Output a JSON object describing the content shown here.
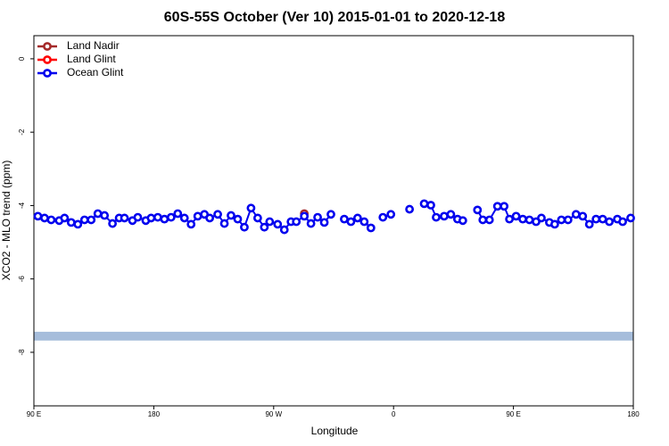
{
  "chart_data": {
    "type": "line",
    "title": "60S-55S October (Ver 10)   2015-01-01 to 2020-12-18",
    "x_label": "Longitude",
    "y_label": "XCO2 - MLO trend (ppm)",
    "xlim": [
      90,
      540
    ],
    "xticks": [
      {
        "value": 90,
        "label": "90 E"
      },
      {
        "value": 180,
        "label": "180"
      },
      {
        "value": 270,
        "label": "90 W"
      },
      {
        "value": 360,
        "label": "0"
      },
      {
        "value": 450,
        "label": "90 E"
      },
      {
        "value": 540,
        "label": "180"
      }
    ],
    "ylim": [
      -9.46,
      0.63
    ],
    "yticks": [
      0,
      -2,
      -4,
      -6,
      -8
    ],
    "legend": "top-left",
    "band": {
      "range": [
        -7.68,
        -7.44
      ],
      "color": "#a6bddb"
    },
    "series": [
      {
        "name": "Land Nadir",
        "color": "#a52a2a",
        "x": [
          293
        ],
        "values": [
          -4.22
        ]
      },
      {
        "name": "Land Glint",
        "color": "#ff0000",
        "x": [],
        "values": []
      },
      {
        "name": "Ocean Glint",
        "color": "#0000ee",
        "x": [
          93,
          98,
          103,
          109,
          113,
          118,
          123,
          128,
          133,
          138,
          143,
          149,
          154,
          158,
          164,
          168,
          174,
          178,
          183,
          188,
          193,
          198,
          203,
          208,
          213,
          218,
          222,
          228,
          233,
          238,
          243,
          248,
          253,
          258,
          263,
          267,
          273,
          278,
          283,
          287,
          293,
          298,
          303,
          308,
          313,
          null,
          323,
          328,
          333,
          338,
          343,
          null,
          352,
          358,
          null,
          372,
          null,
          383,
          388,
          392,
          398,
          403,
          408,
          412,
          null,
          423,
          427,
          432,
          438,
          443,
          447,
          452,
          457,
          462,
          467,
          471,
          477,
          481,
          486,
          491,
          497,
          502,
          507,
          512,
          517,
          522,
          528,
          532,
          538
        ],
        "values": [
          -4.29,
          -4.34,
          -4.39,
          -4.41,
          -4.34,
          -4.46,
          -4.51,
          -4.39,
          -4.39,
          -4.22,
          -4.27,
          -4.49,
          -4.34,
          -4.34,
          -4.41,
          -4.32,
          -4.41,
          -4.34,
          -4.32,
          -4.37,
          -4.32,
          -4.22,
          -4.34,
          -4.51,
          -4.29,
          -4.24,
          -4.34,
          -4.24,
          -4.49,
          -4.27,
          -4.37,
          -4.59,
          -4.07,
          -4.34,
          -4.59,
          -4.44,
          -4.51,
          -4.66,
          -4.44,
          -4.44,
          -4.29,
          -4.49,
          -4.32,
          -4.46,
          -4.24,
          null,
          -4.37,
          -4.44,
          -4.34,
          -4.44,
          -4.61,
          null,
          -4.32,
          -4.24,
          null,
          -4.1,
          null,
          -3.95,
          -3.99,
          -4.32,
          -4.29,
          -4.24,
          -4.37,
          -4.41,
          null,
          -4.12,
          -4.39,
          -4.39,
          -4.02,
          -4.02,
          -4.37,
          -4.29,
          -4.37,
          -4.39,
          -4.44,
          -4.34,
          -4.46,
          -4.51,
          -4.39,
          -4.39,
          -4.24,
          -4.29,
          -4.51,
          -4.37,
          -4.37,
          -4.44,
          -4.37,
          -4.44,
          -4.34
        ]
      }
    ]
  }
}
